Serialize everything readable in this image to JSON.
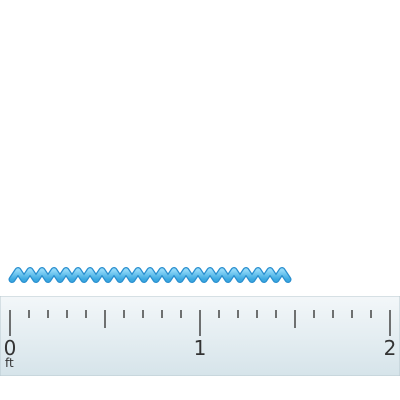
{
  "object": {
    "icon": "wavy-line-icon",
    "length_ft": 1.5,
    "color": "#5ec4f2",
    "outline_color": "#2a8fcf"
  },
  "ruler": {
    "unit": "ft",
    "min": 0,
    "max": 2,
    "subdivisions_per_unit": 10,
    "labels": [
      {
        "value": 0,
        "text": "0"
      },
      {
        "value": 1,
        "text": "1"
      },
      {
        "value": 2,
        "text": "2"
      }
    ],
    "background_color": "#e4eef2",
    "tick_color": "#444444"
  }
}
